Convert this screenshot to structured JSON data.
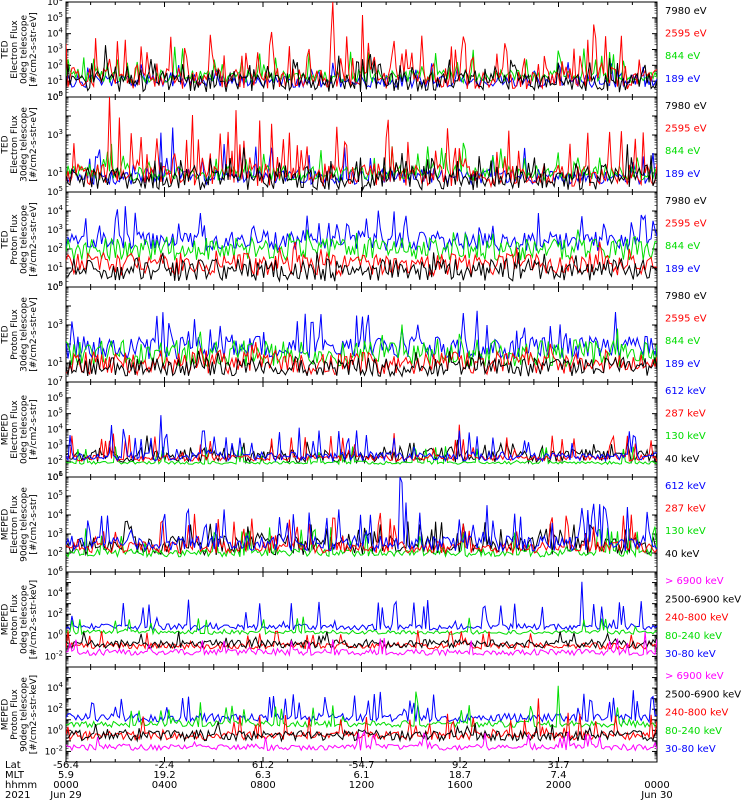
{
  "chart_data": [
    {
      "type": "line",
      "ylabel": [
        "TED",
        "Electron Flux",
        "0deg telescope",
        "[#/cm2-s-str-eV]"
      ],
      "yscale": "log",
      "ylim_exp": [
        0,
        6
      ],
      "ytick_exponents": [
        0,
        1,
        2,
        3,
        4,
        5,
        6
      ],
      "series": [
        {
          "name": "7980 eV",
          "color": "#000000",
          "base": 0.9,
          "spread": 0.6,
          "spike_rate": 0.35,
          "spike_mag": 1.2
        },
        {
          "name": "2595 eV",
          "color": "#ff0000",
          "base": 1.2,
          "spread": 0.7,
          "spike_rate": 0.22,
          "spike_mag": 2.6
        },
        {
          "name": "844 eV",
          "color": "#00dd00",
          "base": 1.3,
          "spread": 0.4,
          "spike_rate": 0.08,
          "spike_mag": 1.5
        },
        {
          "name": "189 eV",
          "color": "#0000ff",
          "base": 1.0,
          "spread": 0.4,
          "spike_rate": 0.04,
          "spike_mag": 1.0
        }
      ]
    },
    {
      "type": "line",
      "ylabel": [
        "TED",
        "Electron Flux",
        "30deg telescope",
        "[#/cm2-s-str-eV]"
      ],
      "yscale": "log",
      "ylim_exp": [
        0,
        5
      ],
      "ytick_exponents": [
        1,
        3,
        5
      ],
      "series": [
        {
          "name": "7980 eV",
          "color": "#000000",
          "base": 0.6,
          "spread": 0.5,
          "spike_rate": 0.3,
          "spike_mag": 1.0
        },
        {
          "name": "2595 eV",
          "color": "#ff0000",
          "base": 0.9,
          "spread": 0.6,
          "spike_rate": 0.2,
          "spike_mag": 2.6
        },
        {
          "name": "844 eV",
          "color": "#00dd00",
          "base": 1.0,
          "spread": 0.4,
          "spike_rate": 0.08,
          "spike_mag": 1.4
        },
        {
          "name": "189 eV",
          "color": "#0000ff",
          "base": 0.8,
          "spread": 0.4,
          "spike_rate": 0.08,
          "spike_mag": 1.6
        }
      ]
    },
    {
      "type": "line",
      "ylabel": [
        "TED",
        "Proton Flux",
        "0deg telescope",
        "[#/cm2-s-str-eV]"
      ],
      "yscale": "log",
      "ylim_exp": [
        0,
        5
      ],
      "ytick_exponents": [
        0,
        1,
        2,
        3,
        4,
        5
      ],
      "series": [
        {
          "name": "7980 eV",
          "color": "#000000",
          "base": 0.9,
          "spread": 0.6,
          "spike_rate": 0.05,
          "spike_mag": 0.6
        },
        {
          "name": "2595 eV",
          "color": "#ff0000",
          "base": 1.2,
          "spread": 0.6,
          "spike_rate": 0.05,
          "spike_mag": 0.8
        },
        {
          "name": "844 eV",
          "color": "#00dd00",
          "base": 2.0,
          "spread": 0.6,
          "spike_rate": 0.05,
          "spike_mag": 0.8
        },
        {
          "name": "189 eV",
          "color": "#0000ff",
          "base": 2.4,
          "spread": 0.5,
          "spike_rate": 0.12,
          "spike_mag": 1.5
        }
      ]
    },
    {
      "type": "line",
      "ylabel": [
        "TED",
        "Proton Flux",
        "30deg telescope",
        "[#/cm2-s-str-eV]"
      ],
      "yscale": "log",
      "ylim_exp": [
        0,
        5
      ],
      "ytick_exponents": [
        1,
        3,
        5
      ],
      "series": [
        {
          "name": "7980 eV",
          "color": "#000000",
          "base": 0.8,
          "spread": 0.5,
          "spike_rate": 0.05,
          "spike_mag": 0.5
        },
        {
          "name": "2595 eV",
          "color": "#ff0000",
          "base": 1.0,
          "spread": 0.6,
          "spike_rate": 0.05,
          "spike_mag": 0.8
        },
        {
          "name": "844 eV",
          "color": "#00dd00",
          "base": 1.5,
          "spread": 0.7,
          "spike_rate": 0.05,
          "spike_mag": 0.8
        },
        {
          "name": "189 eV",
          "color": "#0000ff",
          "base": 1.8,
          "spread": 0.6,
          "spike_rate": 0.12,
          "spike_mag": 1.7
        }
      ]
    },
    {
      "type": "line",
      "ylabel": [
        "MEPED",
        "Electron Flux",
        "0deg telescope",
        "[#/cm2-s-str]"
      ],
      "yscale": "log",
      "ylim_exp": [
        1,
        7
      ],
      "ytick_exponents": [
        1,
        2,
        3,
        4,
        5,
        6,
        7
      ],
      "series": [
        {
          "name": "612 keV",
          "color": "#0000ff",
          "base": 2.3,
          "spread": 0.3,
          "spike_rate": 0.1,
          "spike_mag": 1.8
        },
        {
          "name": "287 keV",
          "color": "#ff0000",
          "base": 2.2,
          "spread": 0.2,
          "spike_rate": 0.06,
          "spike_mag": 1.6
        },
        {
          "name": "130 keV",
          "color": "#00dd00",
          "base": 1.9,
          "spread": 0.1,
          "spike_rate": 0.05,
          "spike_mag": 1.2
        },
        {
          "name": "40 keV",
          "color": "#000000",
          "base": 2.3,
          "spread": 0.4,
          "spike_rate": 0.15,
          "spike_mag": 0.8
        }
      ]
    },
    {
      "type": "line",
      "ylabel": [
        "MEPED",
        "Electron Flux",
        "90deg telescope",
        "[#/cm2-s-str]"
      ],
      "yscale": "log",
      "ylim_exp": [
        1,
        6
      ],
      "ytick_exponents": [
        2,
        3,
        4,
        5,
        6
      ],
      "series": [
        {
          "name": "612 keV",
          "color": "#0000ff",
          "base": 2.5,
          "spread": 0.4,
          "spike_rate": 0.15,
          "spike_mag": 2.0
        },
        {
          "name": "287 keV",
          "color": "#ff0000",
          "base": 2.3,
          "spread": 0.3,
          "spike_rate": 0.12,
          "spike_mag": 1.7
        },
        {
          "name": "130 keV",
          "color": "#00dd00",
          "base": 2.0,
          "spread": 0.2,
          "spike_rate": 0.1,
          "spike_mag": 1.5
        },
        {
          "name": "40 keV",
          "color": "#000000",
          "base": 2.4,
          "spread": 0.5,
          "spike_rate": 0.15,
          "spike_mag": 1.0
        }
      ]
    },
    {
      "type": "line",
      "ylabel": [
        "MEPED",
        "Proton Flux",
        "0deg telescope",
        "[#/cm2-s-str-keV]"
      ],
      "yscale": "log",
      "ylim_exp": [
        -3,
        6
      ],
      "ytick_exponents": [
        -2,
        0,
        2,
        4,
        6
      ],
      "series": [
        {
          "name": "> 6900 keV",
          "color": "#ff00ff",
          "base": -1.6,
          "spread": 0.3,
          "spike_rate": 0.03,
          "spike_mag": 1.4
        },
        {
          "name": "2500-6900 keV",
          "color": "#000000",
          "base": -0.8,
          "spread": 0.4,
          "spike_rate": 0.03,
          "spike_mag": 1.0
        },
        {
          "name": "240-800 keV",
          "color": "#ff0000",
          "base": -1.0,
          "spread": 0.3,
          "spike_rate": 0.03,
          "spike_mag": 1.5
        },
        {
          "name": "80-240 keV",
          "color": "#00dd00",
          "base": 0.3,
          "spread": 0.2,
          "spike_rate": 0.05,
          "spike_mag": 1.6
        },
        {
          "name": "30-80 keV",
          "color": "#0000ff",
          "base": 0.8,
          "spread": 0.3,
          "spike_rate": 0.1,
          "spike_mag": 2.6
        }
      ]
    },
    {
      "type": "line",
      "ylabel": [
        "MEPED",
        "Proton Flux",
        "90deg telescope",
        "[#/cm2-s-str-keV]"
      ],
      "yscale": "log",
      "ylim_exp": [
        -3,
        6
      ],
      "ytick_exponents": [
        -2,
        0,
        2,
        4
      ],
      "series": [
        {
          "name": "> 6900 keV",
          "color": "#ff00ff",
          "base": -1.6,
          "spread": 0.3,
          "spike_rate": 0.03,
          "spike_mag": 1.4
        },
        {
          "name": "2500-6900 keV",
          "color": "#000000",
          "base": -0.5,
          "spread": 0.5,
          "spike_rate": 0.05,
          "spike_mag": 1.0
        },
        {
          "name": "240-800 keV",
          "color": "#ff0000",
          "base": -0.5,
          "spread": 0.4,
          "spike_rate": 0.08,
          "spike_mag": 2.0
        },
        {
          "name": "80-240 keV",
          "color": "#00dd00",
          "base": 0.6,
          "spread": 0.3,
          "spike_rate": 0.1,
          "spike_mag": 2.0
        },
        {
          "name": "30-80 keV",
          "color": "#0000ff",
          "base": 1.2,
          "spread": 0.4,
          "spike_rate": 0.12,
          "spike_mag": 2.4
        }
      ]
    }
  ],
  "footer": {
    "row_labels": [
      "Lat",
      "MLT",
      "hhmm",
      "2021"
    ],
    "columns": [
      {
        "lat": "-56.4",
        "mlt": "5.9",
        "hhmm": "0000",
        "date": "Jun 29"
      },
      {
        "lat": "-2.4",
        "mlt": "19.2",
        "hhmm": "0400",
        "date": ""
      },
      {
        "lat": "61.2",
        "mlt": "6.3",
        "hhmm": "0800",
        "date": ""
      },
      {
        "lat": "-54.7",
        "mlt": "6.1",
        "hhmm": "1200",
        "date": ""
      },
      {
        "lat": "9.2",
        "mlt": "18.7",
        "hhmm": "1600",
        "date": ""
      },
      {
        "lat": "31.7",
        "mlt": "7.4",
        "hhmm": "2000",
        "date": ""
      },
      {
        "lat": "",
        "mlt": "",
        "hhmm": "0000",
        "date": "Jun 30"
      }
    ]
  }
}
